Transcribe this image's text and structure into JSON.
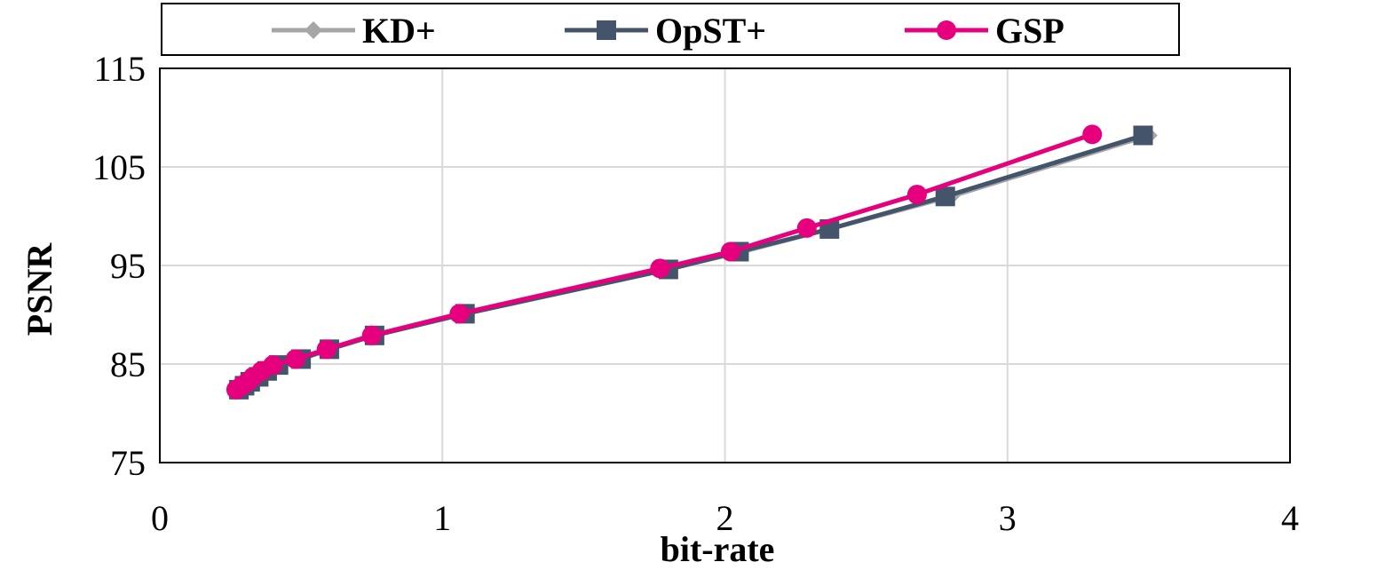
{
  "chart_data": {
    "type": "line",
    "title": "",
    "xlabel": "bit-rate",
    "ylabel": "PSNR",
    "xlim": [
      0,
      4
    ],
    "ylim": [
      75,
      115
    ],
    "xticks": [
      0,
      1,
      2,
      3,
      4
    ],
    "yticks": [
      75,
      85,
      95,
      105,
      115
    ],
    "xtick_labels": [
      "0",
      "1",
      "2",
      "3",
      "4"
    ],
    "ytick_labels": [
      "75",
      "85",
      "95",
      "105",
      "115"
    ],
    "grid": true,
    "legend_position": "top",
    "series": [
      {
        "name": "KD+",
        "color": "#a6a6a6",
        "marker": "diamond",
        "x": [
          0.28,
          0.3,
          0.32,
          0.35,
          0.38,
          0.42,
          0.49,
          0.6,
          0.76,
          1.07,
          1.79,
          2.05,
          2.37,
          2.8,
          3.5
        ],
        "y": [
          82.4,
          82.8,
          83.2,
          83.7,
          84.3,
          84.9,
          85.5,
          86.5,
          87.9,
          90.1,
          94.6,
          96.3,
          98.7,
          102.0,
          108.2
        ]
      },
      {
        "name": "OpST+",
        "color": "#44546a",
        "marker": "square",
        "x": [
          0.28,
          0.3,
          0.32,
          0.35,
          0.38,
          0.42,
          0.5,
          0.6,
          0.76,
          1.08,
          1.8,
          2.05,
          2.37,
          2.78,
          3.48
        ],
        "y": [
          82.4,
          82.8,
          83.2,
          83.7,
          84.3,
          84.9,
          85.5,
          86.5,
          87.9,
          90.1,
          94.6,
          96.4,
          98.7,
          102.0,
          108.2
        ]
      },
      {
        "name": "GSP",
        "color": "#e6007e",
        "marker": "circle",
        "x": [
          0.27,
          0.29,
          0.31,
          0.33,
          0.36,
          0.4,
          0.48,
          0.59,
          0.75,
          1.06,
          1.77,
          2.02,
          2.29,
          2.68,
          3.3
        ],
        "y": [
          82.4,
          82.8,
          83.2,
          83.7,
          84.3,
          84.9,
          85.5,
          86.5,
          87.9,
          90.1,
          94.7,
          96.4,
          98.8,
          102.2,
          108.3
        ]
      }
    ]
  }
}
